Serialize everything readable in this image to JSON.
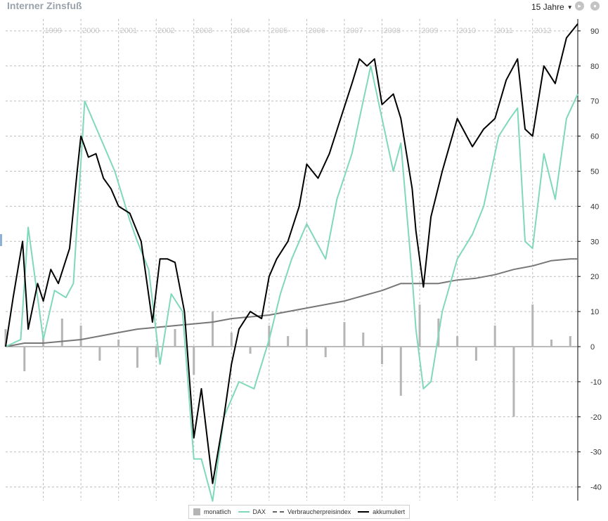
{
  "header": {
    "title": "Interner Zinsfuß",
    "range_label": "15 Jahre"
  },
  "colors": {
    "monthly": "#b5b5b5",
    "dax": "#7fd9b8",
    "cpi": "#777777",
    "cumulative": "#000000",
    "grid": "#bdbdbd"
  },
  "chart_data": {
    "type": "line",
    "title": "Interner Zinsfuß",
    "y_axis_position": "right",
    "ylim": [
      -44,
      92
    ],
    "y_ticks": [
      90,
      80,
      70,
      60,
      50,
      40,
      30,
      20,
      10,
      0,
      -10,
      -20,
      -30,
      -40
    ],
    "grid": true,
    "x_range": [
      1998.0,
      2013.2
    ],
    "x_ticks": [
      1999,
      2000,
      2001,
      2002,
      2003,
      2004,
      2005,
      2006,
      2007,
      2008,
      2009,
      2010,
      2011,
      2012
    ],
    "legend_position": "bottom-center",
    "series": [
      {
        "name": "monatlich",
        "type": "bar",
        "x": [
          1998.0,
          1998.5,
          1999.0,
          1999.5,
          2000.0,
          2000.5,
          2001.0,
          2001.5,
          2002.0,
          2002.5,
          2003.0,
          2003.5,
          2004.0,
          2004.5,
          2005.0,
          2005.5,
          2006.0,
          2006.5,
          2007.0,
          2007.5,
          2008.0,
          2008.5,
          2009.0,
          2009.5,
          2010.0,
          2010.5,
          2011.0,
          2011.5,
          2012.0,
          2012.5,
          2013.0
        ],
        "values": [
          5,
          -7,
          3,
          8,
          6,
          -4,
          2,
          -6,
          -3,
          5,
          -8,
          10,
          4,
          -2,
          6,
          3,
          5,
          -3,
          7,
          4,
          -5,
          -14,
          12,
          8,
          3,
          -4,
          6,
          -20,
          12,
          2,
          3
        ]
      },
      {
        "name": "DAX",
        "type": "line",
        "x": [
          1998.0,
          1998.4,
          1998.6,
          1999.0,
          1999.3,
          1999.6,
          1999.8,
          2000.1,
          2000.5,
          2000.9,
          2001.3,
          2001.5,
          2001.8,
          2002.1,
          2002.4,
          2002.7,
          2003.0,
          2003.2,
          2003.5,
          2003.8,
          2004.2,
          2004.6,
          2005.0,
          2005.3,
          2005.6,
          2006.0,
          2006.5,
          2006.8,
          2007.2,
          2007.5,
          2007.7,
          2008.0,
          2008.3,
          2008.5,
          2008.8,
          2008.9,
          2009.1,
          2009.3,
          2009.6,
          2010.0,
          2010.4,
          2010.7,
          2011.1,
          2011.4,
          2011.6,
          2011.8,
          2012.0,
          2012.3,
          2012.6,
          2012.9,
          2013.2
        ],
        "values": [
          0,
          2,
          34,
          2,
          16,
          14,
          18,
          70,
          60,
          50,
          36,
          30,
          22,
          -5,
          15,
          10,
          -32,
          -32,
          -44,
          -20,
          -10,
          -12,
          2,
          15,
          25,
          35,
          25,
          42,
          55,
          70,
          80,
          65,
          50,
          58,
          20,
          5,
          -12,
          -10,
          10,
          25,
          32,
          40,
          60,
          65,
          68,
          30,
          28,
          55,
          42,
          65,
          72
        ]
      },
      {
        "name": "Verbraucherpreisindex",
        "type": "line",
        "x": [
          1998.0,
          1998.5,
          1999.0,
          1999.5,
          2000.0,
          2000.5,
          2001.0,
          2001.5,
          2002.0,
          2002.5,
          2003.0,
          2003.5,
          2004.0,
          2004.5,
          2005.0,
          2005.5,
          2006.0,
          2006.5,
          2007.0,
          2007.5,
          2008.0,
          2008.5,
          2009.0,
          2009.5,
          2010.0,
          2010.5,
          2011.0,
          2011.5,
          2012.0,
          2012.5,
          2013.0,
          2013.2
        ],
        "values": [
          0,
          1,
          1,
          1.5,
          2,
          3,
          4,
          5,
          5.5,
          6,
          6.5,
          7,
          8,
          8.5,
          9,
          10,
          11,
          12,
          13,
          14.5,
          16,
          18,
          18,
          18,
          19,
          19.5,
          20.5,
          22,
          23,
          24.5,
          25,
          25
        ]
      },
      {
        "name": "akkumuliert",
        "type": "line",
        "x": [
          1998.0,
          1998.2,
          1998.45,
          1998.6,
          1998.85,
          1999.0,
          1999.2,
          1999.4,
          1999.7,
          1999.9,
          2000.0,
          2000.2,
          2000.4,
          2000.6,
          2000.8,
          2001.0,
          2001.3,
          2001.6,
          2001.9,
          2002.1,
          2002.3,
          2002.5,
          2002.75,
          2003.0,
          2003.2,
          2003.5,
          2003.8,
          2004.0,
          2004.2,
          2004.5,
          2004.8,
          2005.0,
          2005.2,
          2005.5,
          2005.8,
          2006.0,
          2006.3,
          2006.6,
          2006.9,
          2007.2,
          2007.4,
          2007.6,
          2007.8,
          2008.0,
          2008.3,
          2008.5,
          2008.8,
          2008.9,
          2009.1,
          2009.3,
          2009.6,
          2010.0,
          2010.4,
          2010.7,
          2011.0,
          2011.3,
          2011.6,
          2011.8,
          2012.0,
          2012.3,
          2012.6,
          2012.9,
          2013.2
        ],
        "values": [
          0,
          14,
          30,
          5,
          18,
          13,
          22,
          18,
          28,
          50,
          60,
          54,
          55,
          48,
          45,
          40,
          38,
          30,
          7,
          25,
          25,
          24,
          10,
          -26,
          -12,
          -39,
          -20,
          -5,
          5,
          10,
          8,
          20,
          25,
          30,
          40,
          52,
          48,
          55,
          65,
          75,
          82,
          80,
          82,
          69,
          72,
          65,
          45,
          33,
          17,
          37,
          50,
          65,
          57,
          62,
          65,
          76,
          82,
          62,
          60,
          80,
          75,
          88,
          92
        ]
      }
    ]
  }
}
